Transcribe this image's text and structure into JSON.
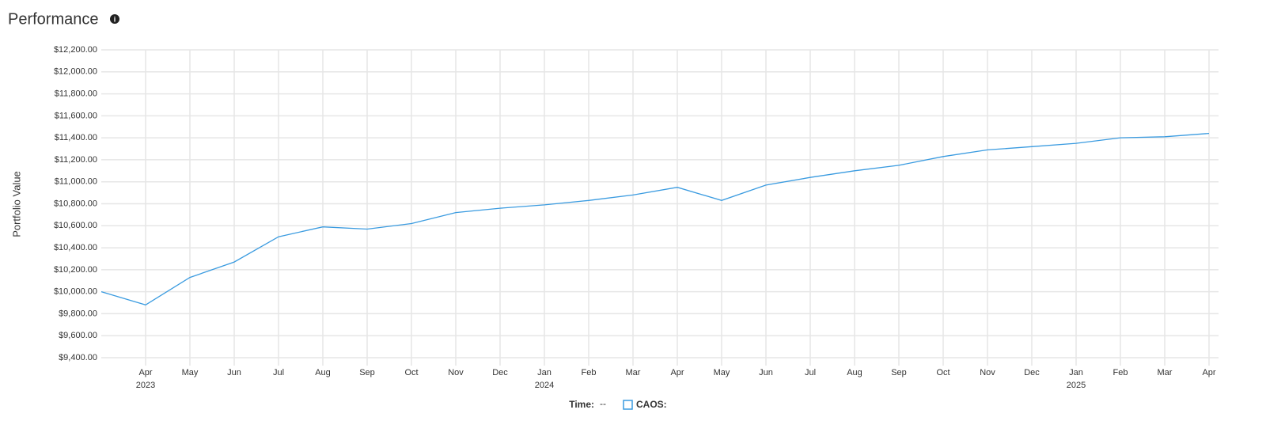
{
  "chart_data": {
    "type": "line",
    "title": "Performance",
    "ylabel": "Portfolio Value",
    "x": [
      "2023-03",
      "2023-04",
      "2023-05",
      "2023-06",
      "2023-07",
      "2023-08",
      "2023-09",
      "2023-10",
      "2023-11",
      "2023-12",
      "2024-01",
      "2024-02",
      "2024-03",
      "2024-04",
      "2024-05",
      "2024-06",
      "2024-07",
      "2024-08",
      "2024-09",
      "2024-10",
      "2024-11",
      "2024-12",
      "2025-01",
      "2025-02",
      "2025-03",
      "2025-04"
    ],
    "series": [
      {
        "name": "CAOS:",
        "color": "#3a9be0",
        "values": [
          10000,
          9880,
          10130,
          10270,
          10500,
          10590,
          10570,
          10620,
          10720,
          10760,
          10790,
          10830,
          10880,
          10950,
          10830,
          10970,
          11040,
          11100,
          11150,
          11230,
          11290,
          11320,
          11350,
          11400,
          11410,
          11440
        ]
      }
    ],
    "xlim": [
      "2023-03",
      "2025-04"
    ],
    "xticks": [
      {
        "value": "2023-04",
        "label": "Apr"
      },
      {
        "value": "2023-05",
        "label": "May"
      },
      {
        "value": "2023-06",
        "label": "Jun"
      },
      {
        "value": "2023-07",
        "label": "Jul"
      },
      {
        "value": "2023-08",
        "label": "Aug"
      },
      {
        "value": "2023-09",
        "label": "Sep"
      },
      {
        "value": "2023-10",
        "label": "Oct"
      },
      {
        "value": "2023-11",
        "label": "Nov"
      },
      {
        "value": "2023-12",
        "label": "Dec"
      },
      {
        "value": "2024-01",
        "label": "Jan"
      },
      {
        "value": "2024-02",
        "label": "Feb"
      },
      {
        "value": "2024-03",
        "label": "Mar"
      },
      {
        "value": "2024-04",
        "label": "Apr"
      },
      {
        "value": "2024-05",
        "label": "May"
      },
      {
        "value": "2024-06",
        "label": "Jun"
      },
      {
        "value": "2024-07",
        "label": "Jul"
      },
      {
        "value": "2024-08",
        "label": "Aug"
      },
      {
        "value": "2024-09",
        "label": "Sep"
      },
      {
        "value": "2024-10",
        "label": "Oct"
      },
      {
        "value": "2024-11",
        "label": "Nov"
      },
      {
        "value": "2024-12",
        "label": "Dec"
      },
      {
        "value": "2025-01",
        "label": "Jan"
      },
      {
        "value": "2025-02",
        "label": "Feb"
      },
      {
        "value": "2025-03",
        "label": "Mar"
      },
      {
        "value": "2025-04",
        "label": "Apr"
      }
    ],
    "xtick_years": [
      {
        "value": "2023-04",
        "label": "2023"
      },
      {
        "value": "2024-01",
        "label": "2024"
      },
      {
        "value": "2025-01",
        "label": "2025"
      }
    ],
    "ylim": [
      9400,
      12200
    ],
    "yticks": [
      {
        "value": 9400,
        "label": "$9,400.00"
      },
      {
        "value": 9600,
        "label": "$9,600.00"
      },
      {
        "value": 9800,
        "label": "$9,800.00"
      },
      {
        "value": 10000,
        "label": "$10,000.00"
      },
      {
        "value": 10200,
        "label": "$10,200.00"
      },
      {
        "value": 10400,
        "label": "$10,400.00"
      },
      {
        "value": 10600,
        "label": "$10,600.00"
      },
      {
        "value": 10800,
        "label": "$10,800.00"
      },
      {
        "value": 11000,
        "label": "$11,000.00"
      },
      {
        "value": 11200,
        "label": "$11,200.00"
      },
      {
        "value": 11400,
        "label": "$11,400.00"
      },
      {
        "value": 11600,
        "label": "$11,600.00"
      },
      {
        "value": 11800,
        "label": "$11,800.00"
      },
      {
        "value": 12000,
        "label": "$12,000.00"
      },
      {
        "value": 12200,
        "label": "$12,200.00"
      }
    ],
    "grid": true,
    "time_label": "Time:",
    "time_value": "--"
  }
}
